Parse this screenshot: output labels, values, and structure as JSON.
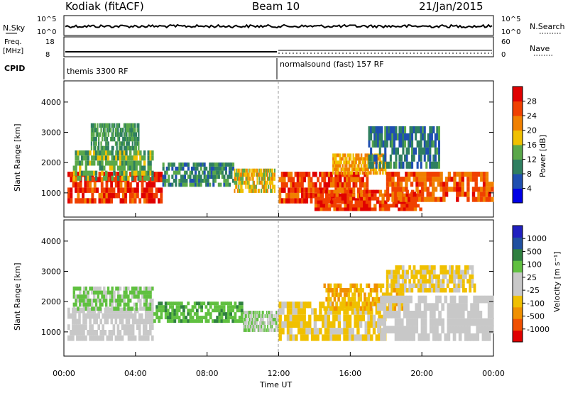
{
  "header": {
    "station": "Kodiak (fitACF)",
    "beam": "Beam 10",
    "date": "21/Jan/2015"
  },
  "noise_panel": {
    "left_label": "N.Sky",
    "left_ticks": [
      "10^5",
      "10^0"
    ],
    "right_ticks": [
      "10^5",
      "10^0"
    ],
    "right_label": "N.Search"
  },
  "freq_panel": {
    "left_label_1": "Freq.",
    "left_label_2": "[MHz]",
    "left_ticks": [
      "18",
      "8"
    ],
    "right_ticks": [
      "60",
      "0"
    ],
    "right_label": "Nave"
  },
  "cpid_panel": {
    "label": "CPID",
    "mode_1": "themis 3300 RF",
    "mode_2": "normalsound (fast) 157 RF"
  },
  "chart_data": [
    {
      "type": "heatmap",
      "title": "",
      "ylabel": "Slant Range [km]",
      "yticks": [
        "1000",
        "2000",
        "3000",
        "4000"
      ],
      "ylim": [
        200,
        4700
      ],
      "colorbar_label": "Power [dB]",
      "colorbar_ticks": [
        "4",
        "8",
        "12",
        "16",
        "20",
        "24",
        "28"
      ],
      "colorbar_range": [
        0,
        32
      ],
      "colors": [
        "#0000e6",
        "#1f4fb0",
        "#2f7f60",
        "#5aa84a",
        "#f0c000",
        "#f08000",
        "#f04000",
        "#e00000"
      ],
      "bands": [
        {
          "t": [
            0.2,
            5.5
          ],
          "r": [
            650,
            1700
          ],
          "level": 27
        },
        {
          "t": [
            0.5,
            5.0
          ],
          "r": [
            1400,
            2400
          ],
          "level": 14
        },
        {
          "t": [
            1.5,
            4.2
          ],
          "r": [
            2400,
            3300
          ],
          "level": 12
        },
        {
          "t": [
            5.5,
            9.5
          ],
          "r": [
            1200,
            2000
          ],
          "level": 10
        },
        {
          "t": [
            9.5,
            11.8
          ],
          "r": [
            1000,
            1800
          ],
          "level": 18
        },
        {
          "t": [
            12.0,
            17.0
          ],
          "r": [
            650,
            1700
          ],
          "level": 26
        },
        {
          "t": [
            14.0,
            20.0
          ],
          "r": [
            400,
            1100
          ],
          "level": 27
        },
        {
          "t": [
            15.0,
            18.0
          ],
          "r": [
            1600,
            2300
          ],
          "level": 20
        },
        {
          "t": [
            18.0,
            24.0
          ],
          "r": [
            700,
            1700
          ],
          "level": 25
        },
        {
          "t": [
            17.0,
            21.0
          ],
          "r": [
            1800,
            3200
          ],
          "level": 9
        }
      ]
    },
    {
      "type": "heatmap",
      "title": "",
      "ylabel": "Slant Range [km]",
      "yticks": [
        "1000",
        "2000",
        "3000",
        "4000"
      ],
      "ylim": [
        200,
        4700
      ],
      "colorbar_label": "Velocity [m s⁻¹]",
      "colorbar_ticks": [
        "1000",
        "500",
        "100",
        "25",
        "-25",
        "-100",
        "-500",
        "-1000"
      ],
      "colorbar_range": [
        -1200,
        1200
      ],
      "colors": [
        "#e00000",
        "#f05000",
        "#f09000",
        "#f0c000",
        "#c8c8c8",
        "#c8c8c8",
        "#60c040",
        "#2f8040",
        "#2050a0",
        "#2020c0"
      ],
      "bands": [
        {
          "t": [
            0.2,
            5.0
          ],
          "r": [
            700,
            1800
          ],
          "level": 0
        },
        {
          "t": [
            0.5,
            5.0
          ],
          "r": [
            1700,
            2500
          ],
          "level": 300
        },
        {
          "t": [
            5.0,
            10.0
          ],
          "r": [
            1300,
            2000
          ],
          "level": 400
        },
        {
          "t": [
            10.0,
            12.0
          ],
          "r": [
            1000,
            1700
          ],
          "level": 200
        },
        {
          "t": [
            12.0,
            18.0
          ],
          "r": [
            700,
            2000
          ],
          "level": -300
        },
        {
          "t": [
            14.5,
            19.0
          ],
          "r": [
            1700,
            2600
          ],
          "level": -450
        },
        {
          "t": [
            17.5,
            24.0
          ],
          "r": [
            700,
            2200
          ],
          "level": 0
        },
        {
          "t": [
            18.0,
            23.0
          ],
          "r": [
            2300,
            3200
          ],
          "level": -300
        }
      ]
    }
  ],
  "xaxis": {
    "ticks": [
      "00:00",
      "04:00",
      "08:00",
      "12:00",
      "16:00",
      "20:00",
      "00:00"
    ],
    "label": "Time UT",
    "range_hours": [
      0,
      24
    ]
  }
}
